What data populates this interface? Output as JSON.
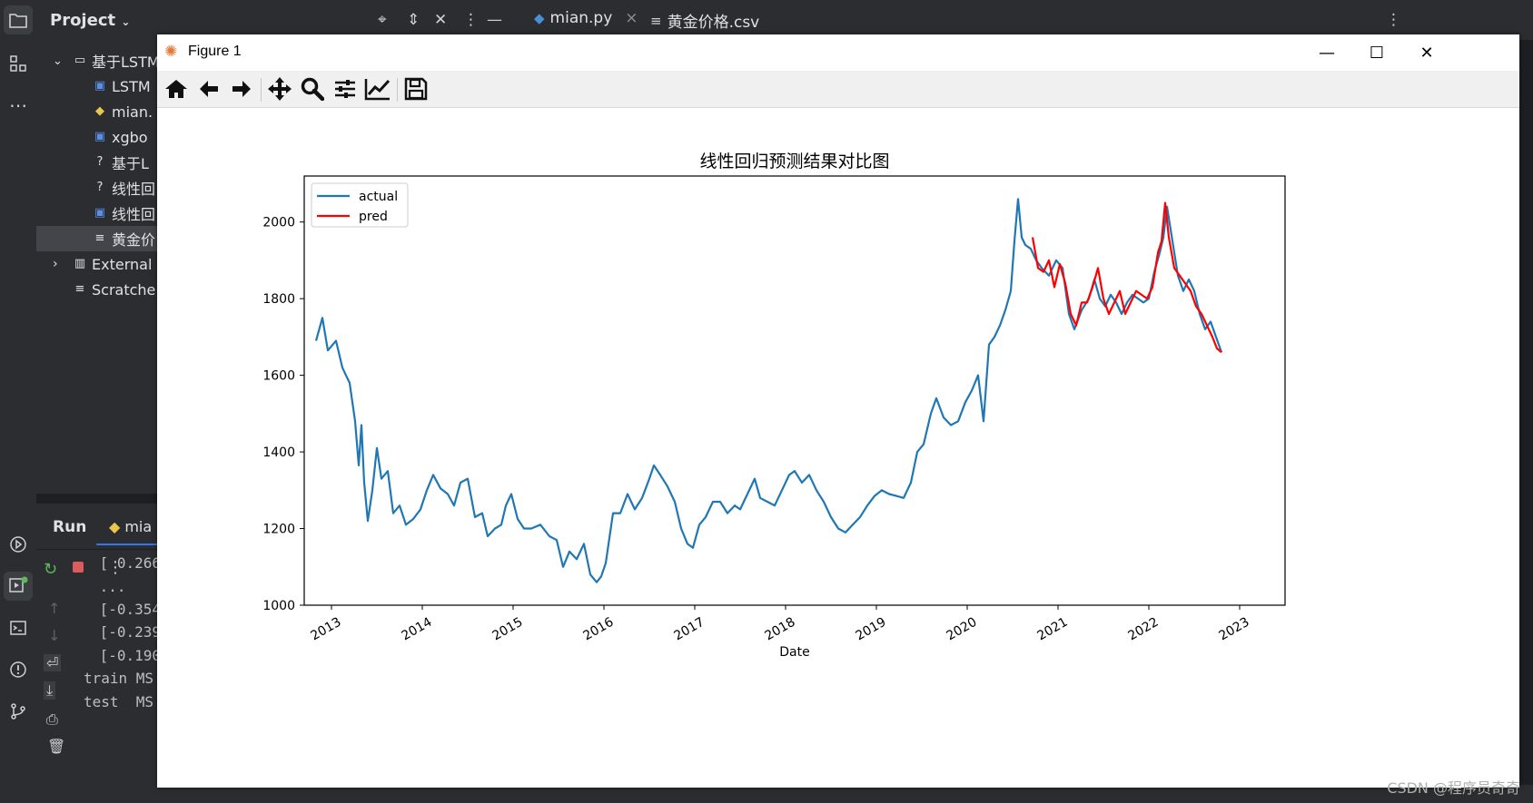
{
  "ide": {
    "project_label": "Project",
    "tabs": [
      {
        "label": "mian.py",
        "close": "×"
      },
      {
        "label": "黄金价格.csv"
      }
    ],
    "tree": [
      {
        "label": "基于LSTM",
        "icon": "folder-icon",
        "expander": "⌄"
      },
      {
        "label": "LSTM",
        "icon": "image-file-icon"
      },
      {
        "label": "mian.",
        "icon": "python-file-icon"
      },
      {
        "label": "xgbo",
        "icon": "image-file-icon"
      },
      {
        "label": "基于L",
        "icon": "unknown-file-icon"
      },
      {
        "label": "线性回",
        "icon": "unknown-file-icon"
      },
      {
        "label": "线性回",
        "icon": "image-file-icon"
      },
      {
        "label": "黄金价",
        "icon": "text-file-icon"
      },
      {
        "label": "External",
        "icon": "library-icon",
        "expander": "›"
      },
      {
        "label": "Scratche",
        "icon": "scratch-icon"
      }
    ],
    "run": {
      "title": "Run",
      "tab": "mia",
      "lines": [
        " [ 0.266",
        " ...",
        " [-0.354",
        " [-0.239",
        " [-0.190",
        "train MS",
        "test  MS"
      ]
    }
  },
  "figure": {
    "window_title": "Figure 1",
    "toolbar": [
      "home-icon",
      "back-icon",
      "forward-icon",
      "pan-icon",
      "zoom-icon",
      "configure-subplots-icon",
      "edit-axis-icon",
      "save-icon"
    ]
  },
  "watermark": "CSDN @程序员奇奇",
  "chart_data": {
    "type": "line",
    "title": "线性回归预测结果对比图",
    "xlabel": "Date",
    "ylabel": "",
    "x_ticks": [
      "2013",
      "2014",
      "2015",
      "2016",
      "2017",
      "2018",
      "2019",
      "2020",
      "2021",
      "2022",
      "2023"
    ],
    "y_ticks": [
      "1000",
      "1200",
      "1400",
      "1600",
      "1800",
      "2000"
    ],
    "xlim": [
      2012.7,
      2023.5
    ],
    "ylim": [
      1000,
      2120
    ],
    "legend_position": "top-left",
    "colors": {
      "actual": "#1f77b4",
      "pred": "#ff0000"
    },
    "series": [
      {
        "name": "actual",
        "x": [
          2012.83,
          2012.9,
          2012.96,
          2013.05,
          2013.12,
          2013.2,
          2013.26,
          2013.3,
          2013.33,
          2013.36,
          2013.4,
          2013.45,
          2013.5,
          2013.55,
          2013.62,
          2013.68,
          2013.75,
          2013.82,
          2013.9,
          2013.98,
          2014.05,
          2014.12,
          2014.2,
          2014.28,
          2014.35,
          2014.42,
          2014.5,
          2014.58,
          2014.66,
          2014.72,
          2014.8,
          2014.87,
          2014.92,
          2014.98,
          2015.05,
          2015.12,
          2015.2,
          2015.3,
          2015.4,
          2015.48,
          2015.55,
          2015.62,
          2015.7,
          2015.78,
          2015.85,
          2015.92,
          2015.97,
          2016.02,
          2016.1,
          2016.18,
          2016.26,
          2016.34,
          2016.42,
          2016.5,
          2016.55,
          2016.62,
          2016.7,
          2016.78,
          2016.85,
          2016.92,
          2016.98,
          2017.05,
          2017.12,
          2017.2,
          2017.28,
          2017.36,
          2017.44,
          2017.5,
          2017.58,
          2017.66,
          2017.72,
          2017.8,
          2017.88,
          2017.96,
          2018.04,
          2018.1,
          2018.18,
          2018.26,
          2018.34,
          2018.42,
          2018.5,
          2018.58,
          2018.66,
          2018.74,
          2018.82,
          2018.9,
          2018.98,
          2019.06,
          2019.14,
          2019.22,
          2019.3,
          2019.38,
          2019.45,
          2019.52,
          2019.6,
          2019.66,
          2019.74,
          2019.82,
          2019.9,
          2019.98,
          2020.05,
          2020.12,
          2020.18,
          2020.24,
          2020.3,
          2020.36,
          2020.42,
          2020.48,
          2020.52,
          2020.56,
          2020.6,
          2020.64,
          2020.7,
          2020.76,
          2020.82,
          2020.9,
          2020.98,
          2021.05,
          2021.12,
          2021.18,
          2021.26,
          2021.34,
          2021.4,
          2021.46,
          2021.52,
          2021.58,
          2021.64,
          2021.7,
          2021.76,
          2021.82,
          2021.88,
          2021.94,
          2022.0,
          2022.06,
          2022.12,
          2022.16,
          2022.2,
          2022.26,
          2022.32,
          2022.38,
          2022.44,
          2022.5,
          2022.56,
          2022.62,
          2022.68,
          2022.74,
          2022.8
        ],
        "y": [
          1690,
          1750,
          1665,
          1690,
          1620,
          1580,
          1480,
          1365,
          1470,
          1320,
          1220,
          1300,
          1410,
          1330,
          1350,
          1240,
          1260,
          1210,
          1225,
          1250,
          1300,
          1340,
          1305,
          1290,
          1260,
          1320,
          1330,
          1230,
          1240,
          1180,
          1200,
          1210,
          1260,
          1290,
          1225,
          1200,
          1200,
          1210,
          1180,
          1170,
          1100,
          1140,
          1120,
          1160,
          1080,
          1060,
          1075,
          1110,
          1240,
          1240,
          1290,
          1250,
          1280,
          1330,
          1365,
          1340,
          1310,
          1270,
          1200,
          1160,
          1150,
          1210,
          1230,
          1270,
          1270,
          1240,
          1260,
          1250,
          1290,
          1330,
          1280,
          1270,
          1260,
          1300,
          1340,
          1350,
          1320,
          1340,
          1300,
          1270,
          1230,
          1200,
          1190,
          1210,
          1230,
          1260,
          1285,
          1300,
          1290,
          1285,
          1280,
          1320,
          1400,
          1420,
          1500,
          1540,
          1490,
          1470,
          1480,
          1530,
          1560,
          1600,
          1480,
          1680,
          1700,
          1730,
          1770,
          1820,
          1950,
          2060,
          1960,
          1940,
          1930,
          1900,
          1880,
          1860,
          1900,
          1880,
          1760,
          1720,
          1770,
          1800,
          1850,
          1800,
          1780,
          1810,
          1790,
          1760,
          1790,
          1810,
          1800,
          1790,
          1800,
          1870,
          1920,
          1960,
          2040,
          1950,
          1860,
          1820,
          1850,
          1820,
          1760,
          1720,
          1740,
          1700,
          1660
        ]
      },
      {
        "name": "pred",
        "x": [
          2020.72,
          2020.78,
          2020.84,
          2020.9,
          2020.96,
          2021.02,
          2021.08,
          2021.14,
          2021.2,
          2021.26,
          2021.32,
          2021.38,
          2021.44,
          2021.5,
          2021.56,
          2021.62,
          2021.68,
          2021.74,
          2021.8,
          2021.86,
          2021.92,
          2021.98,
          2022.04,
          2022.1,
          2022.14,
          2022.18,
          2022.22,
          2022.28,
          2022.34,
          2022.4,
          2022.46,
          2022.52,
          2022.58,
          2022.64,
          2022.7,
          2022.75,
          2022.8
        ],
        "y": [
          1960,
          1880,
          1870,
          1900,
          1830,
          1890,
          1840,
          1760,
          1730,
          1790,
          1790,
          1830,
          1880,
          1800,
          1760,
          1790,
          1820,
          1760,
          1790,
          1820,
          1810,
          1800,
          1830,
          1920,
          1950,
          2050,
          1960,
          1880,
          1860,
          1840,
          1820,
          1780,
          1760,
          1730,
          1700,
          1670,
          1660
        ]
      }
    ]
  }
}
